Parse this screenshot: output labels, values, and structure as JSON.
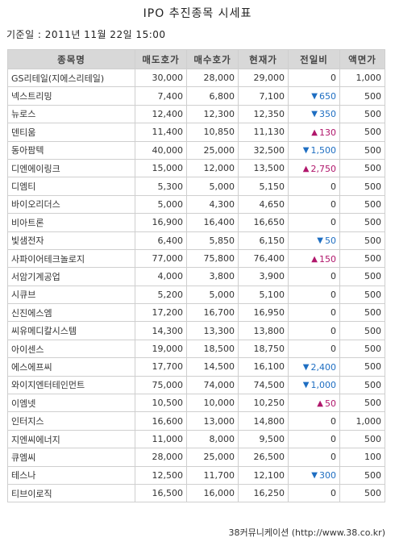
{
  "title": "IPO 추진종목 시세표",
  "date_line": "기준일 : 2011년 11월 22일 15:00",
  "colors": {
    "header_bg": "#d8d8d8",
    "down": "#1e6ec2",
    "up": "#b0166b"
  },
  "icons": {
    "down": "triangle-down-icon",
    "up": "triangle-up-icon"
  },
  "table": {
    "headers": [
      "종목명",
      "매도호가",
      "매수호가",
      "현재가",
      "전일비",
      "액면가"
    ],
    "rows": [
      {
        "name": "GS리테일(지에스리테일)",
        "ask": "30,000",
        "bid": "28,000",
        "price": "29,000",
        "dir": "",
        "change": "0",
        "par": "1,000"
      },
      {
        "name": "넥스트리밍",
        "ask": "7,400",
        "bid": "6,800",
        "price": "7,100",
        "dir": "down",
        "change": "650",
        "par": "500"
      },
      {
        "name": "뉴로스",
        "ask": "12,400",
        "bid": "12,300",
        "price": "12,350",
        "dir": "down",
        "change": "350",
        "par": "500"
      },
      {
        "name": "덴티움",
        "ask": "11,400",
        "bid": "10,850",
        "price": "11,130",
        "dir": "up",
        "change": "130",
        "par": "500"
      },
      {
        "name": "동아팜텍",
        "ask": "40,000",
        "bid": "25,000",
        "price": "32,500",
        "dir": "down",
        "change": "1,500",
        "par": "500"
      },
      {
        "name": "디엔에이링크",
        "ask": "15,000",
        "bid": "12,000",
        "price": "13,500",
        "dir": "up",
        "change": "2,750",
        "par": "500"
      },
      {
        "name": "디엠티",
        "ask": "5,300",
        "bid": "5,000",
        "price": "5,150",
        "dir": "",
        "change": "0",
        "par": "500"
      },
      {
        "name": "바이오리더스",
        "ask": "5,000",
        "bid": "4,300",
        "price": "4,650",
        "dir": "",
        "change": "0",
        "par": "500"
      },
      {
        "name": "비아트론",
        "ask": "16,900",
        "bid": "16,400",
        "price": "16,650",
        "dir": "",
        "change": "0",
        "par": "500"
      },
      {
        "name": "빛샘전자",
        "ask": "6,400",
        "bid": "5,850",
        "price": "6,150",
        "dir": "down",
        "change": "50",
        "par": "500"
      },
      {
        "name": "사파이어테크놀로지",
        "ask": "77,000",
        "bid": "75,800",
        "price": "76,400",
        "dir": "up",
        "change": "150",
        "par": "500"
      },
      {
        "name": "서암기계공업",
        "ask": "4,000",
        "bid": "3,800",
        "price": "3,900",
        "dir": "",
        "change": "0",
        "par": "500"
      },
      {
        "name": "시큐브",
        "ask": "5,200",
        "bid": "5,000",
        "price": "5,100",
        "dir": "",
        "change": "0",
        "par": "500"
      },
      {
        "name": "신진에스엠",
        "ask": "17,200",
        "bid": "16,700",
        "price": "16,950",
        "dir": "",
        "change": "0",
        "par": "500"
      },
      {
        "name": "씨유메디칼시스템",
        "ask": "14,300",
        "bid": "13,300",
        "price": "13,800",
        "dir": "",
        "change": "0",
        "par": "500"
      },
      {
        "name": "아이센스",
        "ask": "19,000",
        "bid": "18,500",
        "price": "18,750",
        "dir": "",
        "change": "0",
        "par": "500"
      },
      {
        "name": "에스에프씨",
        "ask": "17,700",
        "bid": "14,500",
        "price": "16,100",
        "dir": "down",
        "change": "2,400",
        "par": "500"
      },
      {
        "name": "와이지엔터테인먼트",
        "ask": "75,000",
        "bid": "74,000",
        "price": "74,500",
        "dir": "down",
        "change": "1,000",
        "par": "500"
      },
      {
        "name": "이엠넷",
        "ask": "10,500",
        "bid": "10,000",
        "price": "10,250",
        "dir": "up",
        "change": "50",
        "par": "500"
      },
      {
        "name": "인터지스",
        "ask": "16,600",
        "bid": "13,000",
        "price": "14,800",
        "dir": "",
        "change": "0",
        "par": "1,000"
      },
      {
        "name": "지엔씨에너지",
        "ask": "11,000",
        "bid": "8,000",
        "price": "9,500",
        "dir": "",
        "change": "0",
        "par": "500"
      },
      {
        "name": "큐엠씨",
        "ask": "28,000",
        "bid": "25,000",
        "price": "26,500",
        "dir": "",
        "change": "0",
        "par": "100"
      },
      {
        "name": "테스나",
        "ask": "12,500",
        "bid": "11,700",
        "price": "12,100",
        "dir": "down",
        "change": "300",
        "par": "500"
      },
      {
        "name": "티브이로직",
        "ask": "16,500",
        "bid": "16,000",
        "price": "16,250",
        "dir": "",
        "change": "0",
        "par": "500"
      }
    ]
  },
  "footer": "38커뮤니케이션 (http://www.38.co.kr)"
}
